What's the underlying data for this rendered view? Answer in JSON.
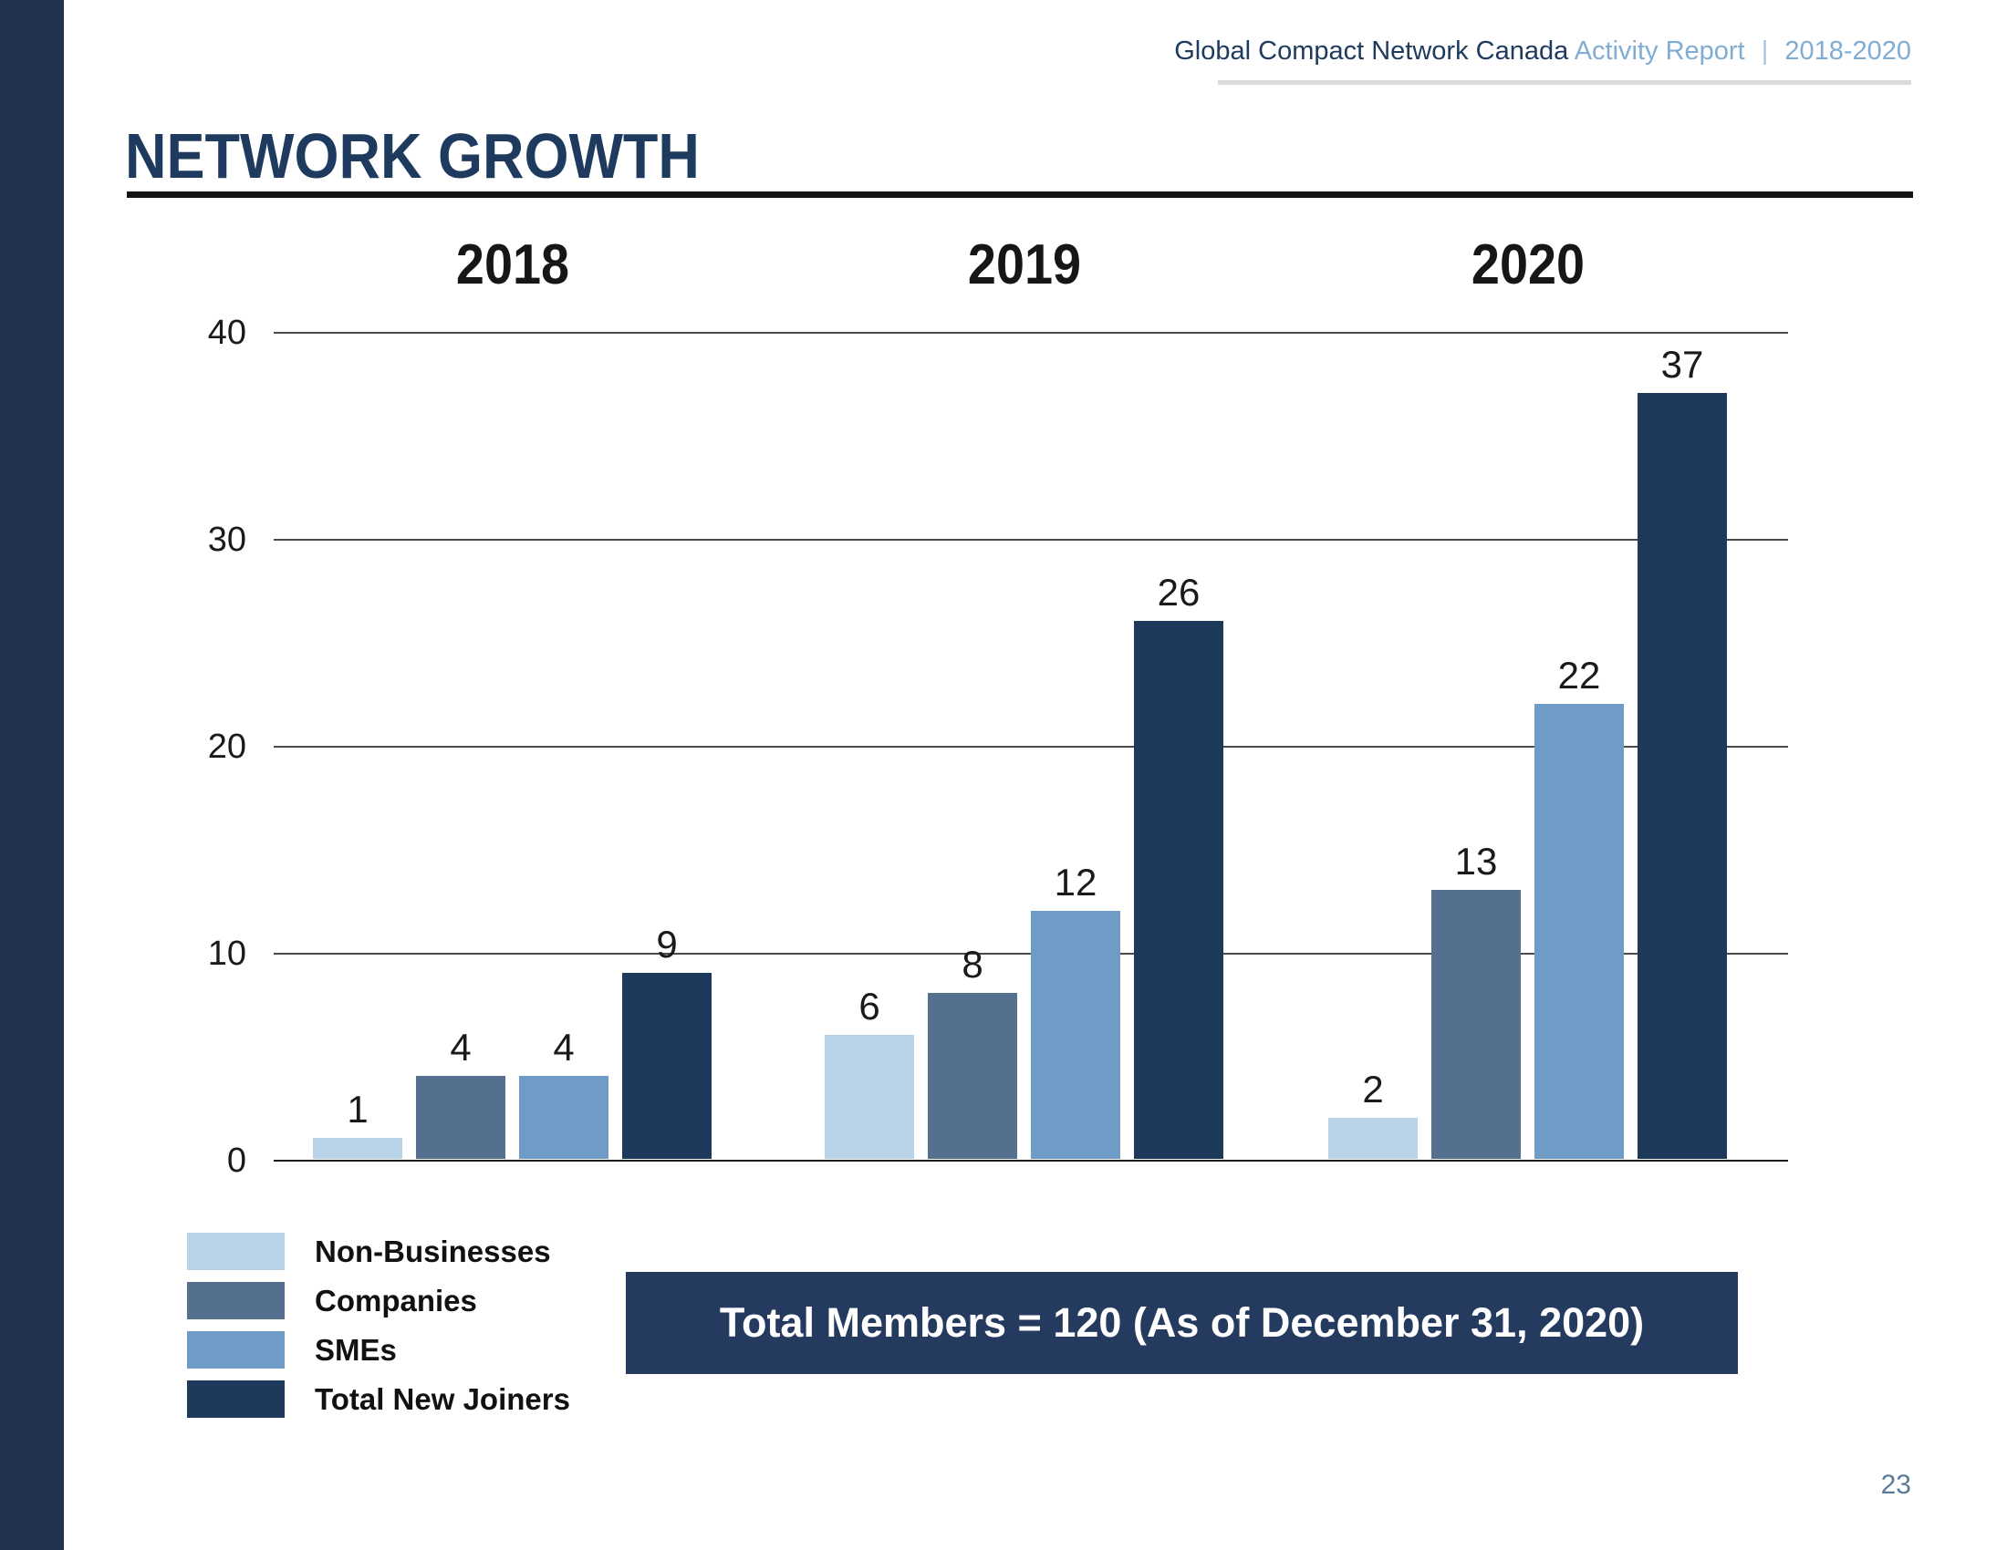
{
  "header": {
    "brand": "Global Compact Network Canada",
    "report_label": "Activity Report",
    "separator": "|",
    "date_range": "2018-2020"
  },
  "title": "NETWORK GROWTH",
  "banner_text": "Total Members = 120 (As of December 31, 2020)",
  "page_number": "23",
  "colors": {
    "navy": "#1d3a5c",
    "slate_blue": "#54708e",
    "medium_blue": "#6f9cc7",
    "light_blue": "#b9d4e9",
    "header_blue": "#7fadd3",
    "sidebar_navy": "#22334f",
    "banner_navy": "#243a5e",
    "title_navy": "#1e3a5f",
    "rule_black": "#131313",
    "underline_gray": "#dadada",
    "page_number_blue": "#5b7a99"
  },
  "chart_data": {
    "type": "bar",
    "title": "",
    "xlabel": "",
    "ylabel": "",
    "categories": [
      "2018",
      "2019",
      "2020"
    ],
    "series": [
      {
        "name": "Non-Businesses",
        "color": "#b9d4e9",
        "values": [
          1,
          6,
          2
        ]
      },
      {
        "name": "Companies",
        "color": "#54708e",
        "values": [
          4,
          8,
          13
        ]
      },
      {
        "name": "SMEs",
        "color": "#6f9cc7",
        "values": [
          4,
          12,
          22
        ]
      },
      {
        "name": "Total New Joiners",
        "color": "#1d3a5c",
        "values": [
          9,
          26,
          37
        ]
      }
    ],
    "ylim": [
      0,
      40
    ],
    "ytick_step": 10,
    "yticks": [
      0,
      10,
      20,
      30,
      40
    ],
    "grid": true,
    "value_labels": true,
    "legend_position": "bottom-left"
  }
}
